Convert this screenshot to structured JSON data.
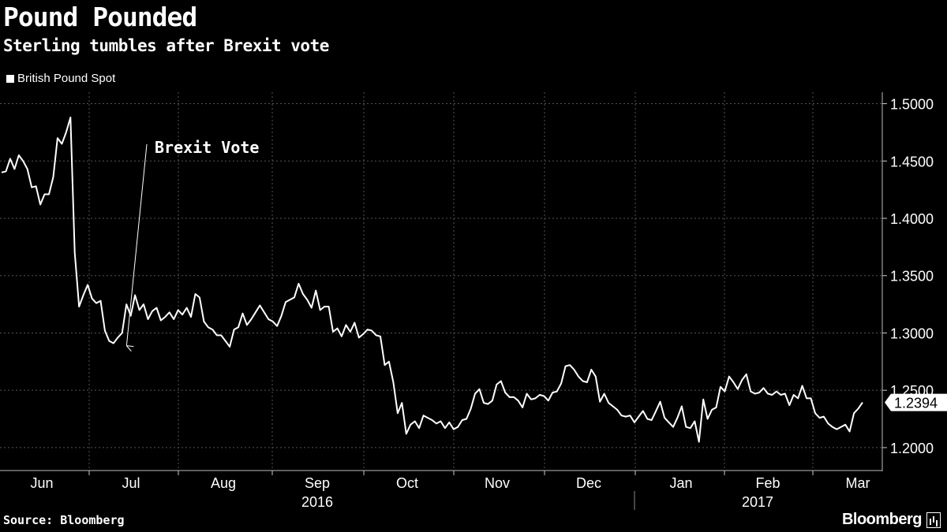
{
  "header": {
    "title": "Pound Pounded",
    "subtitle": "Sterling tumbles after Brexit vote"
  },
  "legend": {
    "label": "British Pound Spot"
  },
  "footer": {
    "source": "Source: Bloomberg",
    "brand": "Bloomberg"
  },
  "colors": {
    "background": "#000000",
    "line": "#ffffff",
    "grid": "#555555"
  },
  "chart_data": {
    "type": "line",
    "title": "Pound Pounded",
    "subtitle": "Sterling tumbles after Brexit vote",
    "ylim": [
      1.18,
      1.51
    ],
    "y_ticks": [
      "1.2000",
      "1.2500",
      "1.3000",
      "1.3500",
      "1.4000",
      "1.4500",
      "1.5000"
    ],
    "y_tick_values": [
      1.2,
      1.25,
      1.3,
      1.35,
      1.4,
      1.45,
      1.5
    ],
    "x_labels": [
      "Jun",
      "Jul",
      "Aug",
      "Sep",
      "Oct",
      "Nov",
      "Dec",
      "Jan",
      "Feb",
      "Mar"
    ],
    "year_labels": [
      "2016",
      "2017"
    ],
    "grid": true,
    "legend_position": "top-left",
    "last_value_label": "1.2394",
    "annotation": {
      "text": "Brexit Vote",
      "target_index": 25
    },
    "series": [
      {
        "name": "British Pound Spot",
        "values": [
          1.44,
          1.441,
          1.452,
          1.443,
          1.455,
          1.45,
          1.443,
          1.427,
          1.428,
          1.412,
          1.421,
          1.421,
          1.436,
          1.47,
          1.465,
          1.475,
          1.488,
          1.37,
          1.323,
          1.333,
          1.342,
          1.33,
          1.326,
          1.328,
          1.302,
          1.293,
          1.291,
          1.296,
          1.3,
          1.325,
          1.315,
          1.333,
          1.32,
          1.325,
          1.312,
          1.319,
          1.322,
          1.311,
          1.314,
          1.318,
          1.312,
          1.32,
          1.316,
          1.322,
          1.314,
          1.334,
          1.331,
          1.31,
          1.305,
          1.303,
          1.298,
          1.298,
          1.293,
          1.288,
          1.303,
          1.305,
          1.317,
          1.307,
          1.312,
          1.318,
          1.324,
          1.318,
          1.312,
          1.31,
          1.306,
          1.315,
          1.327,
          1.329,
          1.331,
          1.343,
          1.334,
          1.329,
          1.322,
          1.337,
          1.32,
          1.323,
          1.323,
          1.301,
          1.304,
          1.297,
          1.307,
          1.301,
          1.309,
          1.296,
          1.299,
          1.303,
          1.302,
          1.298,
          1.297,
          1.272,
          1.275,
          1.257,
          1.23,
          1.239,
          1.212,
          1.22,
          1.223,
          1.217,
          1.228,
          1.226,
          1.224,
          1.221,
          1.223,
          1.217,
          1.222,
          1.216,
          1.218,
          1.224,
          1.225,
          1.234,
          1.247,
          1.251,
          1.239,
          1.238,
          1.241,
          1.255,
          1.258,
          1.248,
          1.244,
          1.244,
          1.241,
          1.235,
          1.247,
          1.242,
          1.243,
          1.246,
          1.245,
          1.241,
          1.248,
          1.249,
          1.256,
          1.271,
          1.272,
          1.268,
          1.262,
          1.258,
          1.257,
          1.268,
          1.262,
          1.24,
          1.247,
          1.239,
          1.236,
          1.233,
          1.228,
          1.227,
          1.228,
          1.222,
          1.227,
          1.232,
          1.225,
          1.224,
          1.232,
          1.24,
          1.226,
          1.222,
          1.218,
          1.226,
          1.236,
          1.218,
          1.217,
          1.223,
          1.205,
          1.242,
          1.225,
          1.233,
          1.235,
          1.253,
          1.249,
          1.262,
          1.257,
          1.251,
          1.259,
          1.264,
          1.249,
          1.247,
          1.248,
          1.252,
          1.247,
          1.246,
          1.249,
          1.246,
          1.247,
          1.237,
          1.246,
          1.243,
          1.254,
          1.243,
          1.243,
          1.23,
          1.226,
          1.227,
          1.221,
          1.218,
          1.216,
          1.218,
          1.22,
          1.214,
          1.23,
          1.234,
          1.2394
        ]
      }
    ]
  }
}
